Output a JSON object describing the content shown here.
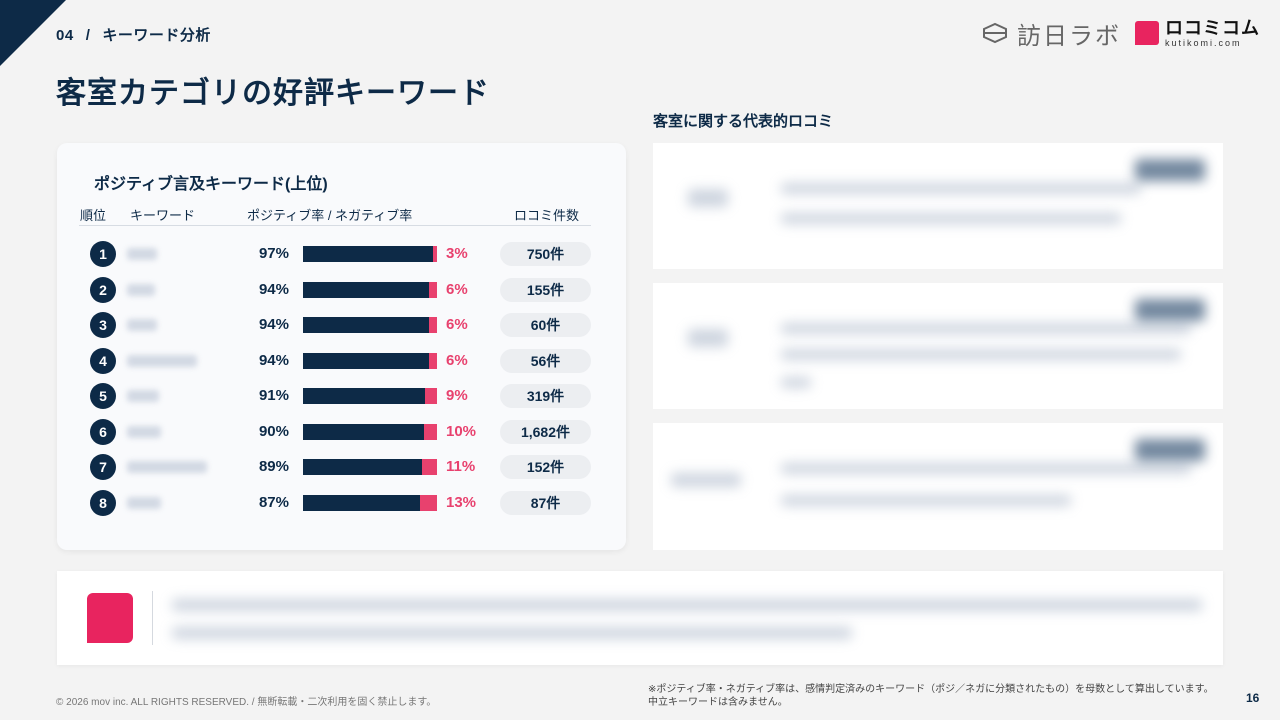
{
  "header": {
    "section_number": "04",
    "separator": "/",
    "section_label": "キーワード分析",
    "title": "客室カテゴリの好評キーワード"
  },
  "logos": {
    "logo_a_text": "訪日ラボ",
    "logo_b_text": "ロコミコム",
    "logo_b_sub": "kutikomi.com"
  },
  "ranking": {
    "title": "ポジティブ言及キーワード(上位)",
    "headers": {
      "rank": "順位",
      "keyword": "キーワード",
      "ratio": "ポジティブ率 / ネガティブ率",
      "count": "ロコミ件数"
    },
    "rows": [
      {
        "rank": "1",
        "positive": "97%",
        "negative": "3%",
        "pos_value": 97,
        "count": "750件"
      },
      {
        "rank": "2",
        "positive": "94%",
        "negative": "6%",
        "pos_value": 94,
        "count": "155件"
      },
      {
        "rank": "3",
        "positive": "94%",
        "negative": "6%",
        "pos_value": 94,
        "count": "60件"
      },
      {
        "rank": "4",
        "positive": "94%",
        "negative": "6%",
        "pos_value": 94,
        "count": "56件"
      },
      {
        "rank": "5",
        "positive": "91%",
        "negative": "9%",
        "pos_value": 91,
        "count": "319件"
      },
      {
        "rank": "6",
        "positive": "90%",
        "negative": "10%",
        "pos_value": 90,
        "count": "1,682件"
      },
      {
        "rank": "7",
        "positive": "89%",
        "negative": "11%",
        "pos_value": 89,
        "count": "152件"
      },
      {
        "rank": "8",
        "positive": "87%",
        "negative": "13%",
        "pos_value": 87,
        "count": "87件"
      }
    ]
  },
  "reviews": {
    "title": "客室に関する代表的ロコミ"
  },
  "footer": {
    "copyright": "© 2026 mov inc. ALL RIGHTS RESERVED. / 無断転載・二次利用を固く禁止します。",
    "note_line1": "※ポジティブ率・ネガティブ率は、感情判定済みのキーワード（ポジ／ネガに分類されたもの）を母数として算出しています。",
    "note_line2": "中立キーワードは含みません。",
    "page_number": "16"
  },
  "colors": {
    "navy": "#0d2a47",
    "negative": "#e8416e",
    "brand_pink": "#e8245f"
  }
}
